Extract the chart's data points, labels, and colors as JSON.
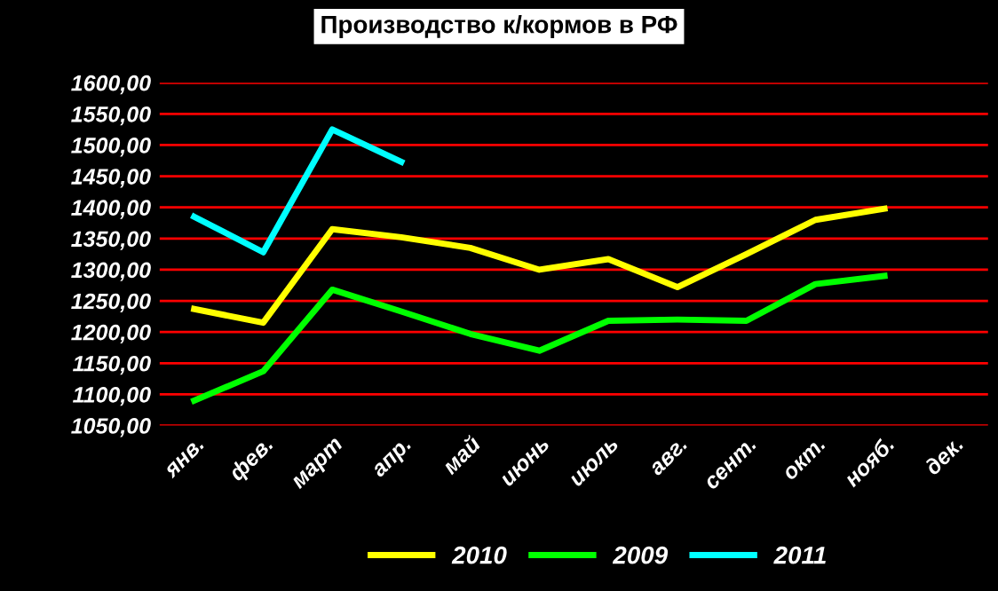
{
  "chart_data": {
    "type": "line",
    "title": "Производство к/кормов в РФ",
    "categories": [
      "янв.",
      "фев.",
      "март",
      "апр.",
      "май",
      "июнь",
      "июль",
      "авг.",
      "сент.",
      "окт.",
      "нояб.",
      "дек."
    ],
    "series": [
      {
        "name": "2010",
        "color": "#ffff00",
        "values": [
          1237,
          1215,
          1365,
          1352,
          1335,
          1300,
          1317,
          1272,
          1325,
          1380,
          1398,
          null
        ]
      },
      {
        "name": "2009",
        "color": "#00ff00",
        "values": [
          1090,
          1137,
          1268,
          1233,
          1197,
          1170,
          1218,
          1220,
          1218,
          1277,
          1290,
          null
        ]
      },
      {
        "name": "2011",
        "color": "#00ffff",
        "values": [
          1385,
          1328,
          1525,
          1473,
          null,
          null,
          null,
          null,
          null,
          null,
          null,
          null
        ]
      }
    ],
    "ylim": [
      1050,
      1600
    ],
    "yticks": [
      {
        "value": 1050,
        "label": "1050,00"
      },
      {
        "value": 1100,
        "label": "1100,00"
      },
      {
        "value": 1150,
        "label": "1150,00"
      },
      {
        "value": 1200,
        "label": "1200,00"
      },
      {
        "value": 1250,
        "label": "1250,00"
      },
      {
        "value": 1300,
        "label": "1300,00"
      },
      {
        "value": 1350,
        "label": "1350,00"
      },
      {
        "value": 1400,
        "label": "1400,00"
      },
      {
        "value": 1450,
        "label": "1450,00"
      },
      {
        "value": 1500,
        "label": "1500,00"
      },
      {
        "value": 1550,
        "label": "1550,00"
      },
      {
        "value": 1600,
        "label": "1600,00"
      }
    ],
    "grid": "y",
    "legend": "bottom",
    "marker": "none",
    "line_style": "solid"
  }
}
